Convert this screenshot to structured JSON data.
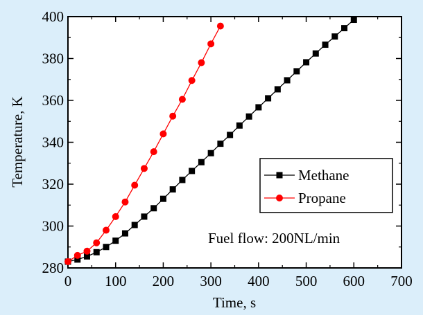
{
  "chart_data": {
    "type": "line",
    "xlabel": "Time, s",
    "ylabel": "Temperature, K",
    "xlim": [
      0,
      700
    ],
    "ylim": [
      280,
      400
    ],
    "xticks": [
      "0",
      "100",
      "200",
      "300",
      "400",
      "500",
      "600",
      "700"
    ],
    "yticks": [
      "280",
      "300",
      "320",
      "340",
      "360",
      "380",
      "400"
    ],
    "grid": false,
    "legend_position": "center-right",
    "annotation": "Fuel flow: 200NL/min",
    "series": [
      {
        "name": "Methane",
        "color": "#000000",
        "marker": "square",
        "x": [
          0,
          20,
          40,
          60,
          80,
          100,
          120,
          140,
          160,
          180,
          200,
          220,
          240,
          260,
          280,
          300,
          320,
          340,
          360,
          380,
          400,
          420,
          440,
          460,
          480,
          500,
          520,
          540,
          560,
          580,
          600
        ],
        "y": [
          283,
          284,
          285.5,
          287.5,
          290,
          293,
          296.5,
          300.5,
          304.5,
          308.5,
          313,
          317.5,
          322,
          326.3,
          330.5,
          334.8,
          339.3,
          343.5,
          348,
          352.3,
          356.7,
          361,
          365.3,
          369.6,
          373.9,
          378.2,
          382.4,
          386.6,
          390.5,
          394.5,
          398.5
        ]
      },
      {
        "name": "Propane",
        "color": "#ff0000",
        "marker": "circle",
        "x": [
          0,
          20,
          40,
          60,
          80,
          100,
          120,
          140,
          160,
          180,
          200,
          220,
          240,
          260,
          280,
          300,
          320
        ],
        "y": [
          283,
          286,
          288,
          292,
          298,
          304.5,
          311.5,
          319.5,
          327.5,
          335.5,
          344,
          352.5,
          360.5,
          369.5,
          378,
          387,
          395.5
        ]
      }
    ]
  }
}
